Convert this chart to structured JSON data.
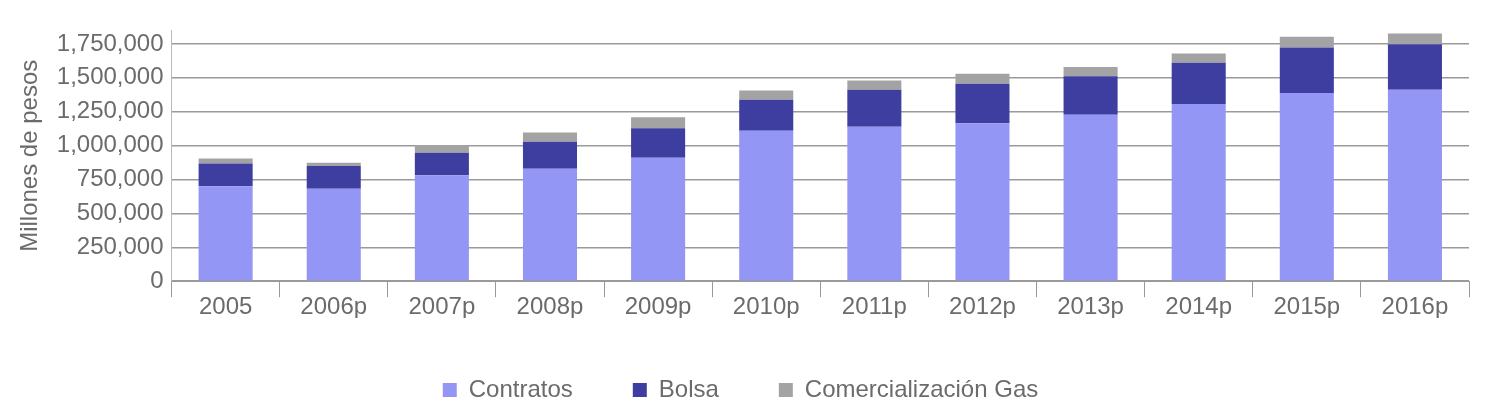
{
  "chart_data": {
    "type": "bar",
    "stacked": true,
    "ylabel": "Millones de pesos",
    "categories": [
      "2005",
      "2006p",
      "2007p",
      "2008p",
      "2009p",
      "2010p",
      "2011p",
      "2012p",
      "2013p",
      "2014p",
      "2015p",
      "2016p"
    ],
    "series": [
      {
        "name": "Contratos",
        "color": "#9496f5",
        "values": [
          700000,
          682000,
          781000,
          830000,
          911000,
          1109000,
          1140000,
          1165000,
          1227000,
          1308000,
          1388000,
          1413000
        ]
      },
      {
        "name": "Bolsa",
        "color": "#3e3ea0",
        "values": [
          168000,
          167000,
          167000,
          199000,
          217000,
          230000,
          273000,
          292000,
          285000,
          303000,
          335000,
          335000
        ]
      },
      {
        "name": "Comercialización Gas",
        "color": "#a3a3a3",
        "values": [
          37000,
          25000,
          56000,
          68000,
          81000,
          68000,
          68000,
          74000,
          68000,
          69000,
          81000,
          80000
        ]
      }
    ],
    "ylim": [
      0,
      1850000
    ],
    "yticks": [
      0,
      {
        "value": 250000,
        "label": "250,000"
      },
      {
        "value": 500000,
        "label": "500,000"
      },
      {
        "value": 750000,
        "label": "750,000"
      },
      {
        "value": 1000000,
        "label": "1,000,000"
      },
      {
        "value": 1250000,
        "label": "1,250,000"
      },
      {
        "value": 1500000,
        "label": "1,500,000"
      },
      {
        "value": 1750000,
        "label": "1,750,000"
      }
    ],
    "grid": "y",
    "legend": "bottom"
  }
}
